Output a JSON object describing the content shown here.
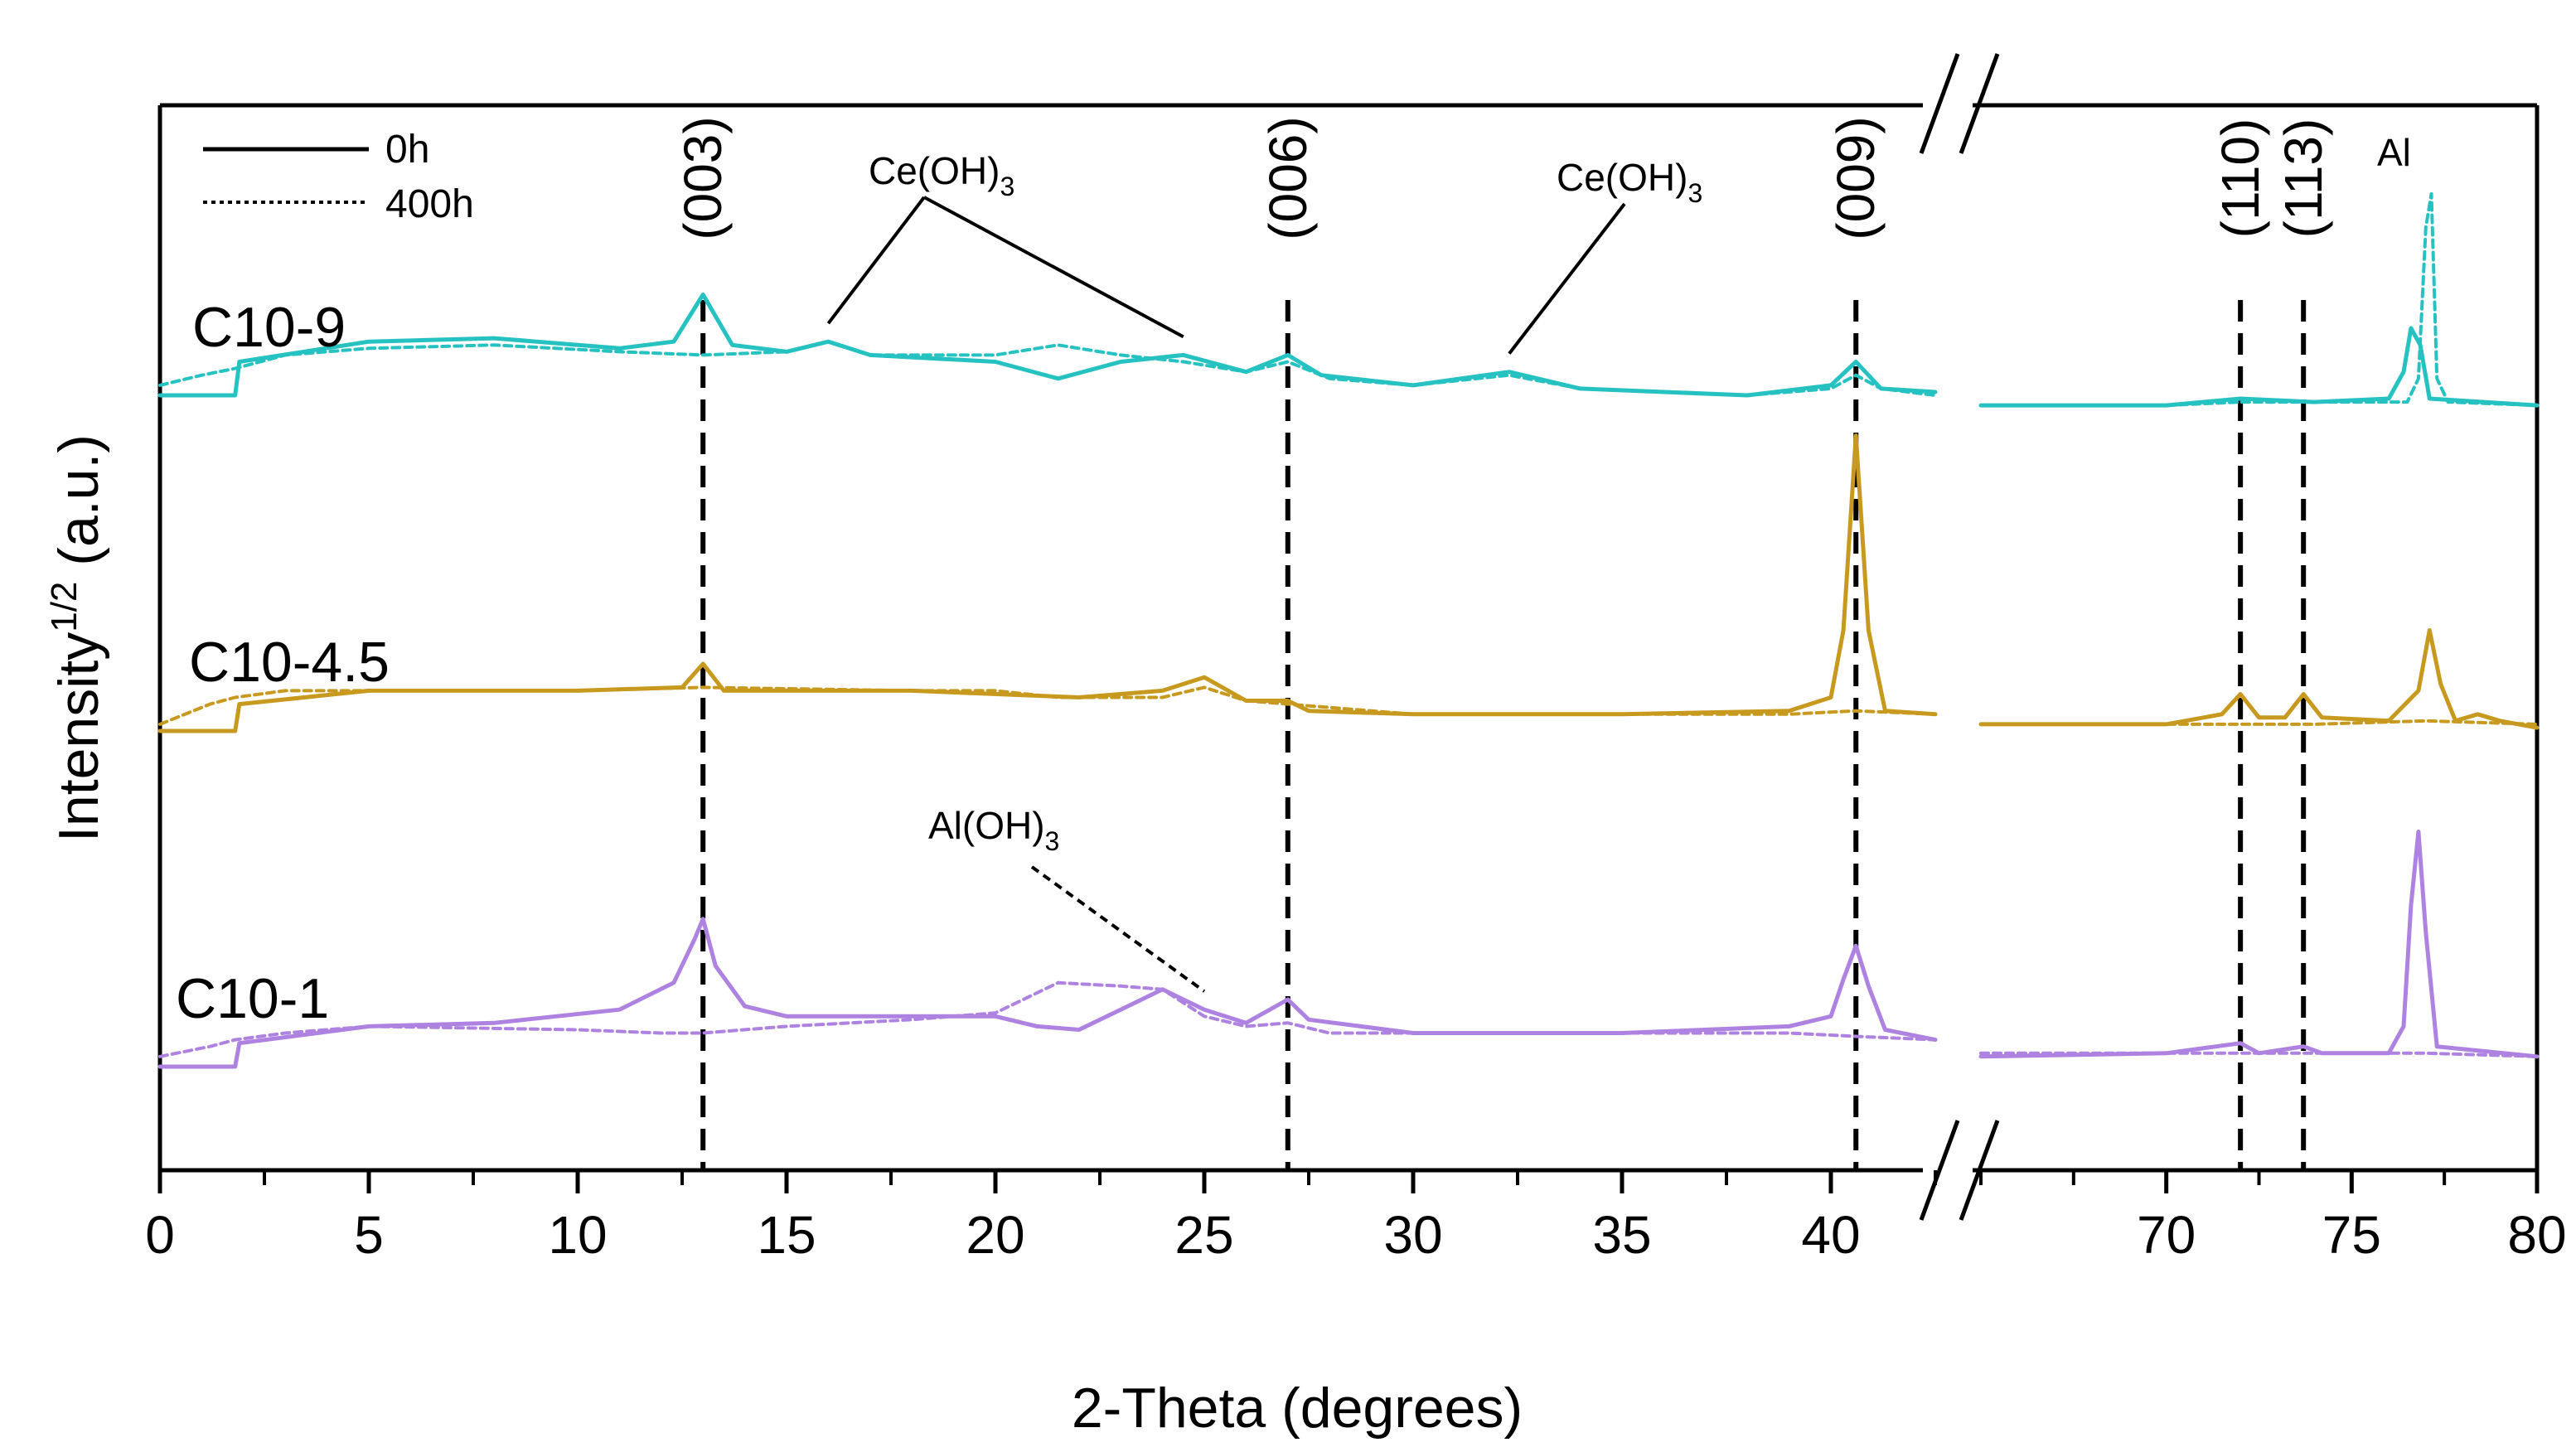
{
  "chart_data": {
    "type": "line",
    "title": "",
    "xlabel": "2-Theta (degrees)",
    "ylabel_main": "Intensity",
    "ylabel_sup": "1/2",
    "ylabel_unit": " (a.u.)",
    "x_segments": [
      {
        "range": [
          0,
          42.5
        ],
        "ticks": [
          0,
          5,
          10,
          15,
          20,
          25,
          30,
          35,
          40
        ],
        "tick_labels": [
          "0",
          "5",
          "10",
          "15",
          "20",
          "25",
          "30",
          "35",
          "40"
        ]
      },
      {
        "range": [
          65,
          80
        ],
        "ticks": [
          70,
          75,
          80
        ],
        "tick_labels": [
          "70",
          "75",
          "80"
        ]
      }
    ],
    "axis_break": "between 42.5 and 65",
    "y_ticks": "none",
    "legend": {
      "position": "top-left",
      "entries": [
        {
          "label": "0h",
          "style": "solid"
        },
        {
          "label": "400h",
          "style": "dotted"
        }
      ]
    },
    "reference_lines": [
      {
        "x": 13,
        "label": "(003)"
      },
      {
        "x": 27,
        "label": "(006)"
      },
      {
        "x": 40.6,
        "label": "(009)"
      },
      {
        "x": 72,
        "label": "(110)"
      },
      {
        "x": 73.7,
        "label": "(113)"
      }
    ],
    "annotations": [
      {
        "base": "Ce(OH)",
        "sub": "3",
        "points_to_x": [
          16,
          24.5
        ],
        "sample": "C10-9"
      },
      {
        "base": "Ce(OH)",
        "sub": "3",
        "points_to_x": [
          32.3
        ],
        "sample": "C10-9"
      },
      {
        "base": "Al(OH)",
        "sub": "3",
        "points_to_x": [
          25
        ],
        "sample": "C10-1"
      },
      {
        "base": "Al",
        "sub": "",
        "points_to_x": [
          77
        ],
        "sample": "C10-9"
      }
    ],
    "series": [
      {
        "sample": "C10-9",
        "name": "C10-9 0h",
        "color": "#26c2c2",
        "style": "solid",
        "offset": 2.0,
        "points": [
          [
            0,
            0
          ],
          [
            1.8,
            0
          ],
          [
            1.9,
            0.1
          ],
          [
            5,
            0.16
          ],
          [
            8,
            0.17
          ],
          [
            11,
            0.14
          ],
          [
            12.3,
            0.16
          ],
          [
            13,
            0.3
          ],
          [
            13.7,
            0.15
          ],
          [
            15,
            0.13
          ],
          [
            16,
            0.16
          ],
          [
            17,
            0.12
          ],
          [
            20,
            0.1
          ],
          [
            21.5,
            0.05
          ],
          [
            23,
            0.1
          ],
          [
            24.5,
            0.12
          ],
          [
            26,
            0.07
          ],
          [
            27,
            0.12
          ],
          [
            27.8,
            0.06
          ],
          [
            30,
            0.03
          ],
          [
            32.3,
            0.07
          ],
          [
            34,
            0.02
          ],
          [
            38,
            0.0
          ],
          [
            40,
            0.03
          ],
          [
            40.6,
            0.1
          ],
          [
            41.2,
            0.02
          ],
          [
            42.5,
            0.01
          ],
          [
            65,
            -0.03
          ],
          [
            70,
            -0.03
          ],
          [
            72,
            -0.01
          ],
          [
            74,
            -0.02
          ],
          [
            76,
            -0.01
          ],
          [
            76.4,
            0.07
          ],
          [
            76.6,
            0.2
          ],
          [
            76.85,
            0.15
          ],
          [
            77.1,
            -0.01
          ],
          [
            80,
            -0.03
          ]
        ]
      },
      {
        "sample": "C10-9",
        "name": "C10-9 400h",
        "color": "#26c2c2",
        "style": "dotted",
        "offset": 2.0,
        "points": [
          [
            0,
            0.03
          ],
          [
            1.0,
            0.06
          ],
          [
            1.8,
            0.08
          ],
          [
            3,
            0.12
          ],
          [
            5,
            0.14
          ],
          [
            8,
            0.15
          ],
          [
            11,
            0.13
          ],
          [
            13,
            0.12
          ],
          [
            15,
            0.13
          ],
          [
            16,
            0.16
          ],
          [
            17,
            0.12
          ],
          [
            20,
            0.12
          ],
          [
            21.5,
            0.15
          ],
          [
            23,
            0.12
          ],
          [
            24.5,
            0.1
          ],
          [
            26,
            0.07
          ],
          [
            27,
            0.1
          ],
          [
            28,
            0.05
          ],
          [
            30,
            0.03
          ],
          [
            32.3,
            0.06
          ],
          [
            34,
            0.02
          ],
          [
            38,
            0.0
          ],
          [
            40,
            0.02
          ],
          [
            40.6,
            0.06
          ],
          [
            41.2,
            0.02
          ],
          [
            42.5,
            0.0
          ],
          [
            65,
            -0.03
          ],
          [
            70,
            -0.03
          ],
          [
            72,
            -0.02
          ],
          [
            74,
            -0.02
          ],
          [
            76.5,
            -0.02
          ],
          [
            76.8,
            0.05
          ],
          [
            77.0,
            0.5
          ],
          [
            77.15,
            0.6
          ],
          [
            77.3,
            0.05
          ],
          [
            77.6,
            -0.02
          ],
          [
            80,
            -0.03
          ]
        ]
      },
      {
        "sample": "C10-4.5",
        "name": "C10-4.5 0h",
        "color": "#c79a1f",
        "style": "solid",
        "offset": 1.0,
        "points": [
          [
            0,
            0
          ],
          [
            1.8,
            0
          ],
          [
            1.9,
            0.08
          ],
          [
            5,
            0.12
          ],
          [
            10,
            0.12
          ],
          [
            12.5,
            0.13
          ],
          [
            13,
            0.2
          ],
          [
            13.5,
            0.12
          ],
          [
            18,
            0.12
          ],
          [
            22,
            0.1
          ],
          [
            24,
            0.12
          ],
          [
            25,
            0.16
          ],
          [
            26,
            0.09
          ],
          [
            27,
            0.09
          ],
          [
            27.5,
            0.06
          ],
          [
            30,
            0.05
          ],
          [
            35,
            0.05
          ],
          [
            39,
            0.06
          ],
          [
            40,
            0.1
          ],
          [
            40.3,
            0.3
          ],
          [
            40.6,
            0.88
          ],
          [
            40.9,
            0.3
          ],
          [
            41.3,
            0.06
          ],
          [
            42.5,
            0.05
          ],
          [
            65,
            0.02
          ],
          [
            70,
            0.02
          ],
          [
            71.5,
            0.05
          ],
          [
            72,
            0.11
          ],
          [
            72.5,
            0.04
          ],
          [
            73.2,
            0.04
          ],
          [
            73.7,
            0.11
          ],
          [
            74.2,
            0.04
          ],
          [
            76,
            0.03
          ],
          [
            76.8,
            0.12
          ],
          [
            77.1,
            0.3
          ],
          [
            77.4,
            0.14
          ],
          [
            77.8,
            0.03
          ],
          [
            78.4,
            0.05
          ],
          [
            79,
            0.03
          ],
          [
            80,
            0.01
          ]
        ]
      },
      {
        "sample": "C10-4.5",
        "name": "C10-4.5 400h",
        "color": "#c79a1f",
        "style": "dotted",
        "offset": 1.0,
        "points": [
          [
            0,
            0.02
          ],
          [
            1.2,
            0.08
          ],
          [
            1.8,
            0.1
          ],
          [
            3,
            0.12
          ],
          [
            5,
            0.12
          ],
          [
            10,
            0.12
          ],
          [
            13,
            0.13
          ],
          [
            18,
            0.12
          ],
          [
            20,
            0.12
          ],
          [
            21.5,
            0.1
          ],
          [
            24,
            0.1
          ],
          [
            25,
            0.13
          ],
          [
            26,
            0.09
          ],
          [
            27,
            0.08
          ],
          [
            30,
            0.05
          ],
          [
            35,
            0.05
          ],
          [
            39,
            0.05
          ],
          [
            40.6,
            0.06
          ],
          [
            42.5,
            0.05
          ],
          [
            65,
            0.02
          ],
          [
            72,
            0.02
          ],
          [
            74,
            0.02
          ],
          [
            77,
            0.03
          ],
          [
            80,
            0.02
          ]
        ]
      },
      {
        "sample": "C10-1",
        "name": "C10-1 0h",
        "color": "#ae82e0",
        "style": "solid",
        "offset": 0.0,
        "points": [
          [
            0,
            0
          ],
          [
            1.8,
            0
          ],
          [
            1.9,
            0.07
          ],
          [
            5,
            0.12
          ],
          [
            8,
            0.13
          ],
          [
            11,
            0.17
          ],
          [
            12.3,
            0.25
          ],
          [
            12.8,
            0.38
          ],
          [
            13,
            0.44
          ],
          [
            13.3,
            0.3
          ],
          [
            14,
            0.18
          ],
          [
            15,
            0.15
          ],
          [
            18,
            0.15
          ],
          [
            20,
            0.15
          ],
          [
            21,
            0.12
          ],
          [
            22,
            0.11
          ],
          [
            23,
            0.17
          ],
          [
            24,
            0.23
          ],
          [
            25,
            0.17
          ],
          [
            26,
            0.13
          ],
          [
            27,
            0.2
          ],
          [
            27.5,
            0.14
          ],
          [
            30,
            0.1
          ],
          [
            35,
            0.1
          ],
          [
            39,
            0.12
          ],
          [
            40,
            0.15
          ],
          [
            40.3,
            0.26
          ],
          [
            40.6,
            0.36
          ],
          [
            40.9,
            0.24
          ],
          [
            41.3,
            0.11
          ],
          [
            42.5,
            0.08
          ],
          [
            65,
            0.03
          ],
          [
            70,
            0.04
          ],
          [
            72,
            0.07
          ],
          [
            72.5,
            0.04
          ],
          [
            73.7,
            0.06
          ],
          [
            74.2,
            0.04
          ],
          [
            76,
            0.04
          ],
          [
            76.4,
            0.12
          ],
          [
            76.6,
            0.48
          ],
          [
            76.8,
            0.7
          ],
          [
            77,
            0.4
          ],
          [
            77.3,
            0.06
          ],
          [
            80,
            0.03
          ]
        ]
      },
      {
        "sample": "C10-1",
        "name": "C10-1 400h",
        "color": "#ae82e0",
        "style": "dotted",
        "offset": 0.0,
        "points": [
          [
            0,
            0.03
          ],
          [
            1.2,
            0.06
          ],
          [
            1.8,
            0.08
          ],
          [
            3,
            0.1
          ],
          [
            5,
            0.12
          ],
          [
            10,
            0.11
          ],
          [
            12,
            0.1
          ],
          [
            13,
            0.1
          ],
          [
            15,
            0.12
          ],
          [
            18,
            0.14
          ],
          [
            20,
            0.16
          ],
          [
            21.5,
            0.25
          ],
          [
            23,
            0.24
          ],
          [
            24,
            0.23
          ],
          [
            25,
            0.15
          ],
          [
            26,
            0.12
          ],
          [
            27,
            0.13
          ],
          [
            28,
            0.1
          ],
          [
            30,
            0.1
          ],
          [
            35,
            0.1
          ],
          [
            39,
            0.1
          ],
          [
            40.6,
            0.09
          ],
          [
            42.5,
            0.08
          ],
          [
            65,
            0.04
          ],
          [
            72,
            0.04
          ],
          [
            74,
            0.04
          ],
          [
            77,
            0.04
          ],
          [
            80,
            0.03
          ]
        ]
      }
    ],
    "sample_labels": [
      {
        "text": "C10-9",
        "series_offset": 2.0
      },
      {
        "text": "C10-4.5",
        "series_offset": 1.0
      },
      {
        "text": "C10-1",
        "series_offset": 0.0
      }
    ]
  }
}
